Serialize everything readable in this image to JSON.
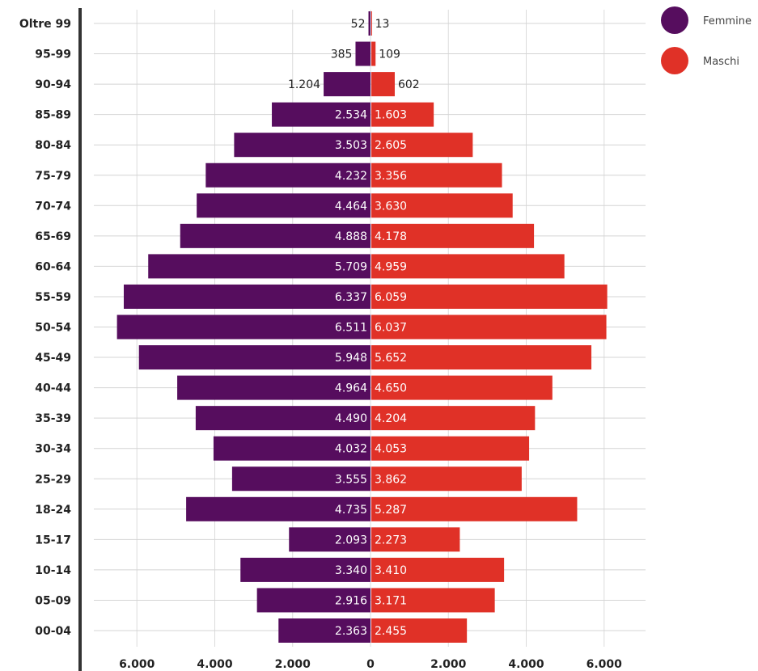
{
  "chart_data": {
    "type": "bar",
    "orientation": "horizontal",
    "layout": "population-pyramid",
    "categories": [
      "Oltre 99",
      "95-99",
      "90-94",
      "85-89",
      "80-84",
      "75-79",
      "70-74",
      "65-69",
      "60-64",
      "55-59",
      "50-54",
      "45-49",
      "40-44",
      "35-39",
      "30-34",
      "25-29",
      "18-24",
      "15-17",
      "10-14",
      "05-09",
      "00-04"
    ],
    "series": [
      {
        "name": "Femmine",
        "side": "left",
        "color": "#560d5e",
        "values": [
          52,
          385,
          1204,
          2534,
          3503,
          4232,
          4464,
          4888,
          5709,
          6337,
          6511,
          5948,
          4964,
          4490,
          4032,
          3555,
          4735,
          2093,
          3340,
          2916,
          2363
        ],
        "labels": [
          "52",
          "385",
          "1.204",
          "2.534",
          "3.503",
          "4.232",
          "4.464",
          "4.888",
          "5.709",
          "6.337",
          "6.511",
          "5.948",
          "4.964",
          "4.490",
          "4.032",
          "3.555",
          "4.735",
          "2.093",
          "3.340",
          "2.916",
          "2.363"
        ]
      },
      {
        "name": "Maschi",
        "side": "right",
        "color": "#e03127",
        "values": [
          13,
          109,
          602,
          1603,
          2605,
          3356,
          3630,
          4178,
          4959,
          6059,
          6037,
          5652,
          4650,
          4204,
          4053,
          3862,
          5287,
          2273,
          3410,
          3171,
          2455
        ],
        "labels": [
          "13",
          "109",
          "602",
          "1.603",
          "2.605",
          "3.356",
          "3.630",
          "4.178",
          "4.959",
          "6.059",
          "6.037",
          "5.652",
          "4.650",
          "4.204",
          "4.053",
          "3.862",
          "5.287",
          "2.273",
          "3.410",
          "3.171",
          "2.455"
        ]
      }
    ],
    "x_ticks": [
      -6000,
      -4000,
      -2000,
      0,
      2000,
      4000,
      6000
    ],
    "x_tick_labels": [
      "6.000",
      "4.000",
      "2.000",
      "0",
      "2.000",
      "4.000",
      "6.000"
    ],
    "xlim": [
      -7000,
      7000
    ],
    "grid": true,
    "legend_position": "top-right"
  }
}
